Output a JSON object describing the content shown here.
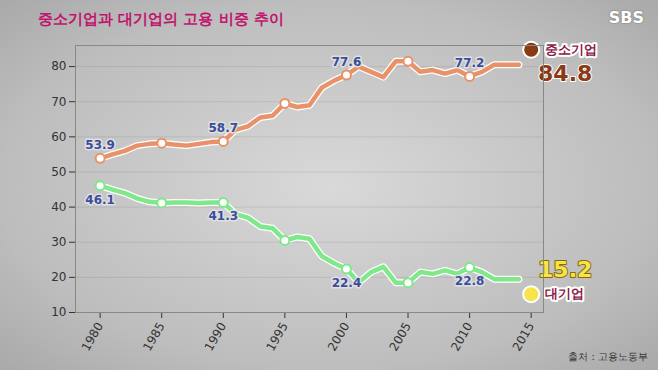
{
  "chart_data": {
    "type": "line",
    "title": "중소기업과 대기업의 고용 비중 추이",
    "logo": "SBS",
    "caption": "출처 : 고용노동부",
    "x": [
      1980,
      1981,
      1982,
      1983,
      1984,
      1985,
      1986,
      1987,
      1988,
      1989,
      1990,
      1991,
      1992,
      1993,
      1994,
      1995,
      1996,
      1997,
      1998,
      1999,
      2000,
      2001,
      2002,
      2003,
      2004,
      2005,
      2006,
      2007,
      2008,
      2009,
      2010,
      2011,
      2012,
      2013,
      2014
    ],
    "series": [
      {
        "name": "중소기업",
        "color": "#e8926a",
        "marker": "circle",
        "values": [
          53.9,
          55,
          56,
          57.5,
          58,
          58.2,
          57.8,
          57.5,
          58,
          58.5,
          58.7,
          62,
          63,
          65.5,
          66,
          69.5,
          68.5,
          69,
          74,
          76,
          77.6,
          80,
          78.5,
          77,
          81.5,
          81.5,
          78.5,
          79,
          78,
          79,
          77.2,
          78.5,
          80.5,
          80.5,
          80.5
        ],
        "value_labels": [
          "53.9",
          null,
          null,
          null,
          null,
          null,
          null,
          null,
          null,
          null,
          "58.7",
          null,
          null,
          null,
          null,
          null,
          null,
          null,
          null,
          null,
          "77.6",
          null,
          null,
          null,
          null,
          null,
          null,
          null,
          null,
          null,
          "77.2",
          null,
          null,
          null,
          null
        ]
      },
      {
        "name": "대기업",
        "color": "#7ee88a",
        "marker": "circle",
        "values": [
          46.1,
          45,
          44,
          42.5,
          41.5,
          41.2,
          41.3,
          41.3,
          41.2,
          41.3,
          41.3,
          38,
          37,
          34.5,
          34,
          30.5,
          31.5,
          31,
          26,
          24,
          22.4,
          18.5,
          21.5,
          23,
          18.5,
          18.5,
          21.5,
          21,
          22,
          21,
          22.8,
          21.5,
          19.5,
          19.5,
          19.5
        ],
        "value_labels": [
          "46.1",
          null,
          null,
          null,
          null,
          null,
          null,
          null,
          null,
          null,
          "41.3",
          null,
          null,
          null,
          null,
          null,
          null,
          null,
          null,
          null,
          "22.4",
          null,
          null,
          null,
          null,
          null,
          null,
          null,
          null,
          null,
          "22.8",
          null,
          null,
          null,
          null
        ]
      }
    ],
    "annotations": [
      {
        "series": "중소기업",
        "x": 2015,
        "y": 84.8,
        "text": "84.8",
        "color": "#8a3a14"
      },
      {
        "series": "대기업",
        "x": 2015,
        "y": 15.2,
        "text": "15.2",
        "color": "#f6e44a"
      }
    ],
    "xlim": [
      1978,
      2016
    ],
    "xticks": [
      1980,
      1985,
      1990,
      1995,
      2000,
      2005,
      2010,
      2015
    ],
    "ylim": [
      10,
      86
    ],
    "yticks": [
      10,
      20,
      30,
      40,
      50,
      60,
      70,
      80
    ],
    "grid": true
  }
}
